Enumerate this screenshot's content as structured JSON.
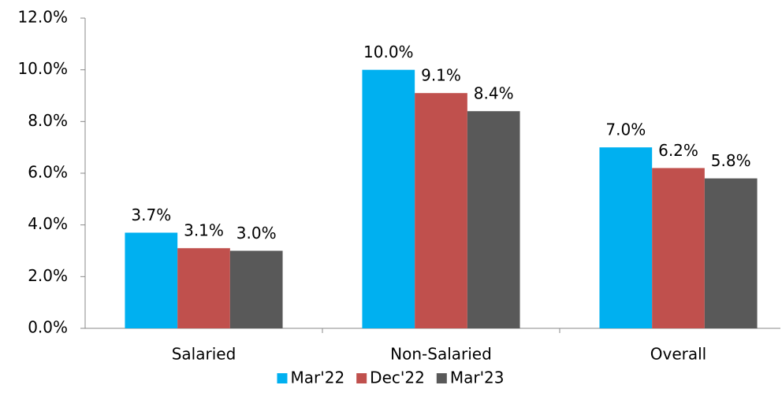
{
  "chart_data": {
    "type": "bar",
    "categories": [
      "Salaried",
      "Non-Salaried",
      "Overall"
    ],
    "series": [
      {
        "name": "Mar'22",
        "color": "#00b0f0",
        "values": [
          3.7,
          10.0,
          7.0
        ],
        "value_labels": [
          "3.7%",
          "10.0%",
          "7.0%"
        ]
      },
      {
        "name": "Dec'22",
        "color": "#c0504d",
        "values": [
          3.1,
          9.1,
          6.2
        ],
        "value_labels": [
          "3.1%",
          "9.1%",
          "6.2%"
        ]
      },
      {
        "name": "Mar'23",
        "color": "#595959",
        "values": [
          3.0,
          8.4,
          5.8
        ],
        "value_labels": [
          "3.0%",
          "8.4%",
          "5.8%"
        ]
      }
    ],
    "ylim": [
      0,
      12
    ],
    "yticks": [
      {
        "value": 0,
        "label": "0.0%"
      },
      {
        "value": 2,
        "label": "2.0%"
      },
      {
        "value": 4,
        "label": "4.0%"
      },
      {
        "value": 6,
        "label": "6.0%"
      },
      {
        "value": 8,
        "label": "8.0%"
      },
      {
        "value": 10,
        "label": "10.0%"
      },
      {
        "value": 12,
        "label": "12.0%"
      }
    ],
    "legend": "bottom"
  }
}
